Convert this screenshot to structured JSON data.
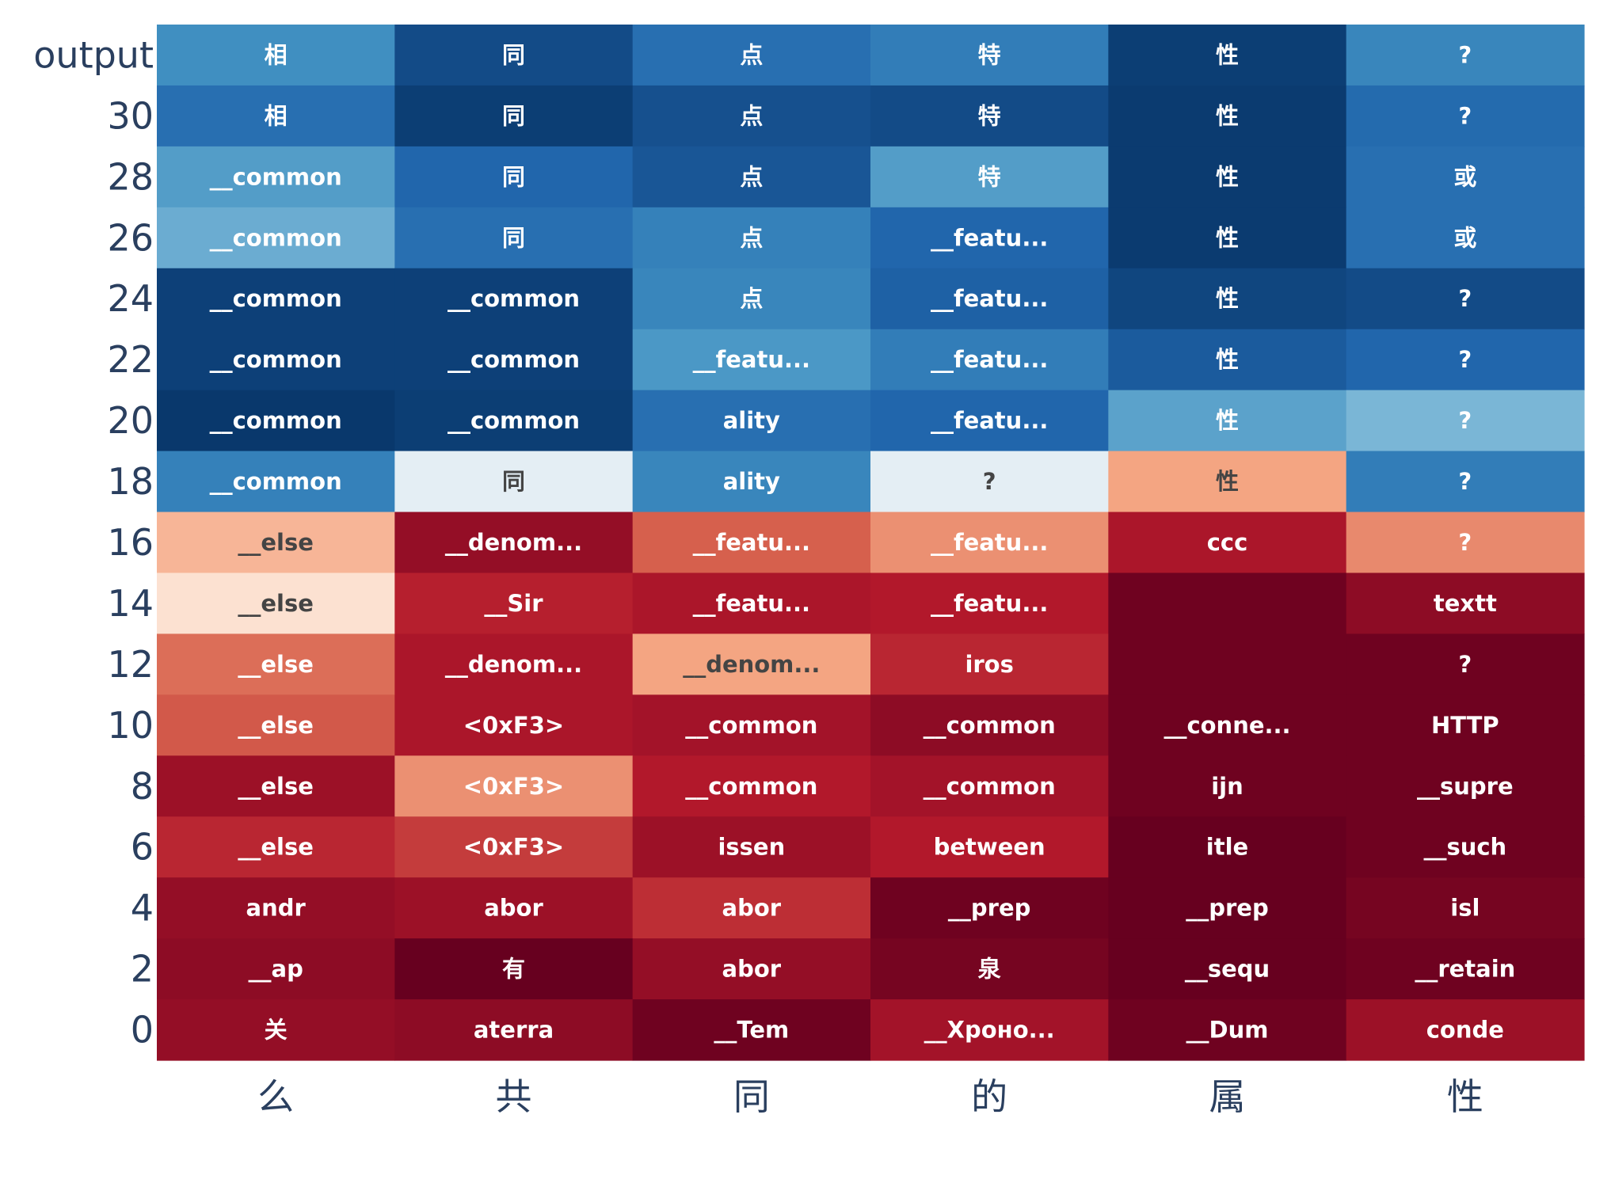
{
  "chart_data": {
    "type": "heatmap",
    "x_categories": [
      "么",
      "共",
      "同",
      "的",
      "属",
      "性"
    ],
    "y_categories": [
      "output",
      "30",
      "28",
      "26",
      "24",
      "22",
      "20",
      "18",
      "16",
      "14",
      "12",
      "10",
      "8",
      "6",
      "4",
      "2",
      "0"
    ],
    "colorscale": "RdBu",
    "colorscale_range": [
      -1,
      1
    ],
    "cells": [
      {
        "tokens": [
          "相",
          "同",
          "点",
          "特",
          "性",
          "?"
        ],
        "values": [
          0.62,
          0.9,
          0.76,
          0.7,
          0.95,
          0.66
        ]
      },
      {
        "tokens": [
          "相",
          "同",
          "点",
          "特",
          "性",
          "?"
        ],
        "values": [
          0.76,
          0.95,
          0.88,
          0.9,
          0.96,
          0.78
        ]
      },
      {
        "tokens": [
          "__common",
          "同",
          "点",
          "特",
          "性",
          "或"
        ],
        "values": [
          0.56,
          0.8,
          0.86,
          0.56,
          0.96,
          0.76
        ]
      },
      {
        "tokens": [
          "__common",
          "同",
          "点",
          "__featu...",
          "性",
          "或"
        ],
        "values": [
          0.5,
          0.76,
          0.68,
          0.8,
          0.96,
          0.76
        ]
      },
      {
        "tokens": [
          "__common",
          "__common",
          "点",
          "__featu...",
          "性",
          "?"
        ],
        "values": [
          0.94,
          0.94,
          0.66,
          0.82,
          0.92,
          0.9
        ]
      },
      {
        "tokens": [
          "__common",
          "__common",
          "__featu...",
          "__featu...",
          "性",
          "?"
        ],
        "values": [
          0.94,
          0.94,
          0.58,
          0.7,
          0.84,
          0.8
        ]
      },
      {
        "tokens": [
          "__common",
          "__common",
          "ality",
          "__featu...",
          "性",
          "?"
        ],
        "values": [
          0.97,
          0.95,
          0.76,
          0.8,
          0.54,
          0.46
        ]
      },
      {
        "tokens": [
          "__common",
          "同",
          "ality",
          "?",
          "性",
          "?"
        ],
        "values": [
          0.68,
          0.1,
          0.66,
          0.1,
          -0.4,
          0.7
        ]
      },
      {
        "tokens": [
          "__else",
          "__denom...",
          "__featu...",
          "__featu...",
          "ccc",
          "?"
        ],
        "values": [
          -0.34,
          -0.88,
          -0.6,
          -0.46,
          -0.82,
          -0.48
        ]
      },
      {
        "tokens": [
          "__else",
          "__Sir",
          "__featu...",
          "__featu...",
          "",
          "textt"
        ],
        "values": [
          -0.16,
          -0.78,
          -0.82,
          -0.8,
          -0.98,
          -0.9
        ]
      },
      {
        "tokens": [
          "__else",
          "__denom...",
          "__denom...",
          "iros",
          "",
          "?"
        ],
        "values": [
          -0.56,
          -0.82,
          -0.4,
          -0.76,
          -0.98,
          -0.98
        ]
      },
      {
        "tokens": [
          "__else",
          "<0xF3>",
          "__common",
          "__common",
          "__conne...",
          "HTTP"
        ],
        "values": [
          -0.62,
          -0.82,
          -0.84,
          -0.9,
          -0.98,
          -0.98
        ]
      },
      {
        "tokens": [
          "__else",
          "<0xF3>",
          "__common",
          "__common",
          "ijn",
          "__supre"
        ],
        "values": [
          -0.86,
          -0.46,
          -0.8,
          -0.84,
          -0.98,
          -0.98
        ]
      },
      {
        "tokens": [
          "__else",
          "<0xF3>",
          "issen",
          "between",
          "itle",
          "__such"
        ],
        "values": [
          -0.76,
          -0.7,
          -0.86,
          -0.8,
          -1.0,
          -0.98
        ]
      },
      {
        "tokens": [
          "andr",
          "abor",
          "abor",
          "__prep",
          "__prep",
          "isl"
        ],
        "values": [
          -0.88,
          -0.86,
          -0.74,
          -0.98,
          -1.0,
          -0.96
        ]
      },
      {
        "tokens": [
          "__ap",
          "有",
          "abor",
          "泉",
          "__sequ",
          "__retain"
        ],
        "values": [
          -0.9,
          -1.0,
          -0.88,
          -0.96,
          -1.0,
          -0.98
        ]
      },
      {
        "tokens": [
          "关",
          "aterra",
          "__Tem",
          "__Хроно...",
          "__Dum",
          "conde"
        ],
        "values": [
          -0.88,
          -0.9,
          -0.98,
          -0.84,
          -0.98,
          -0.86
        ]
      }
    ]
  }
}
